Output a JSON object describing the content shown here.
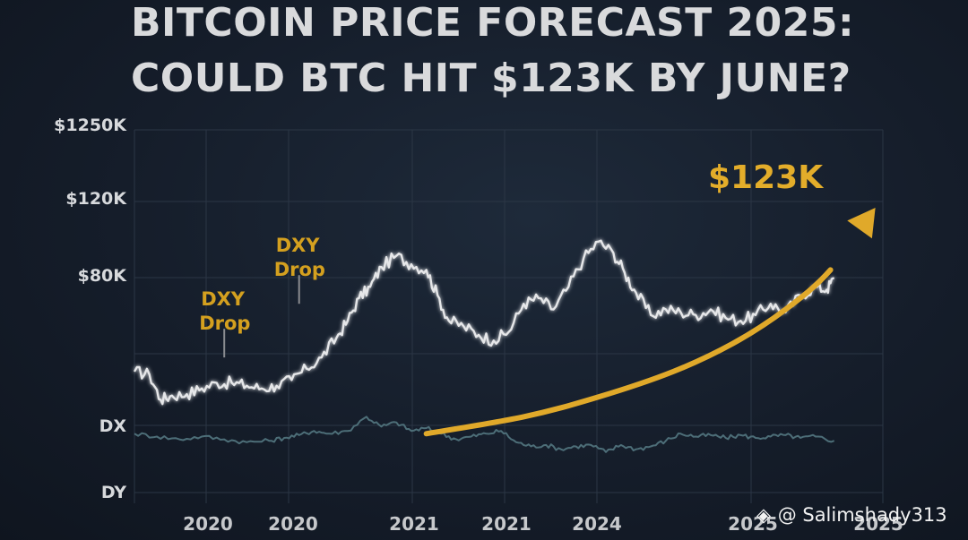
{
  "title": {
    "line1": "BITCOIN PRICE FORECAST 2025:",
    "line2": "COULD BTC HIT $123K BY JUNE?"
  },
  "watermark": {
    "logo_icon": "binance-diamond-icon",
    "text": "@ Salimshady313"
  },
  "colors": {
    "background": "#141c28",
    "btc_line": "#e6e7e9",
    "dxy_line": "#4d6e78",
    "arrow": "#e0a92a",
    "annotation": "#d4a01f",
    "grid": "#2b3645"
  },
  "chart_data": {
    "type": "line",
    "title": "BITCOIN PRICE FORECAST 2025: COULD BTC HIT $123K BY JUNE?",
    "grid": true,
    "y_tick_labels": [
      "$1250K",
      "$120K",
      "$80K",
      "DX",
      "DY"
    ],
    "x_tick_labels": [
      "2020",
      "2020",
      "2021",
      "2021",
      "2024",
      "2025",
      "2025"
    ],
    "xlabel": "",
    "ylabel": "",
    "t_range": [
      0,
      100
    ],
    "price_range": [
      0,
      130
    ],
    "series": [
      {
        "key": "btc",
        "t": [
          0,
          2,
          3.5,
          5,
          7,
          9,
          11,
          13,
          15,
          17,
          19,
          21,
          23,
          25,
          27,
          28.5,
          30,
          31.5,
          33,
          35,
          37,
          39,
          40.5,
          42,
          44,
          46,
          48,
          50,
          52,
          54,
          56,
          58,
          60,
          62,
          64,
          65.5,
          67,
          69,
          71,
          73,
          75,
          77,
          79,
          81,
          83,
          85,
          87,
          89,
          91,
          92.5,
          93.5
        ],
        "values": [
          46,
          45,
          36,
          37.5,
          38,
          40,
          42,
          42,
          41,
          40,
          41,
          43,
          47,
          51,
          58,
          64,
          72,
          76,
          83,
          87,
          84,
          82,
          73,
          64,
          62,
          59,
          57,
          60,
          70,
          72,
          68,
          76,
          86,
          92,
          88,
          81,
          74,
          66,
          68,
          67,
          66,
          68,
          65,
          64,
          66,
          70,
          67,
          73,
          76,
          75,
          79
        ]
      },
      {
        "key": "dxy",
        "t": [
          0,
          3,
          6,
          9,
          12,
          15,
          18,
          20,
          22,
          24,
          26,
          28.5,
          31,
          33,
          35,
          37,
          39,
          41,
          43,
          45,
          47,
          49,
          51,
          53,
          55,
          57,
          59,
          61,
          63,
          65,
          67,
          69,
          71,
          73,
          75,
          77,
          79,
          81,
          83,
          85,
          87,
          89,
          91,
          93.5
        ],
        "values": [
          24,
          23,
          22,
          23,
          22,
          21,
          21.5,
          22.5,
          23.5,
          25,
          24,
          25,
          30,
          26.5,
          28,
          25,
          26,
          24,
          22,
          23,
          24,
          25,
          21,
          19.5,
          20,
          18.5,
          19.5,
          20,
          17.5,
          20,
          18.5,
          19.5,
          21.5,
          24,
          23,
          23.5,
          22.5,
          23.5,
          22.5,
          23,
          23.5,
          22.5,
          23,
          21.5
        ]
      }
    ],
    "forecast_arrow": {
      "label": "$123K",
      "t": [
        39,
        52,
        62,
        72,
        80,
        87,
        93,
        99
      ],
      "values": [
        24,
        30,
        37,
        46,
        56,
        68,
        82,
        104
      ]
    },
    "annotations": [
      {
        "lines": [
          "DXY",
          "Drop"
        ],
        "t": 12,
        "value": 51
      },
      {
        "lines": [
          "DXY",
          "Drop"
        ],
        "t": 22,
        "value": 70
      }
    ]
  }
}
